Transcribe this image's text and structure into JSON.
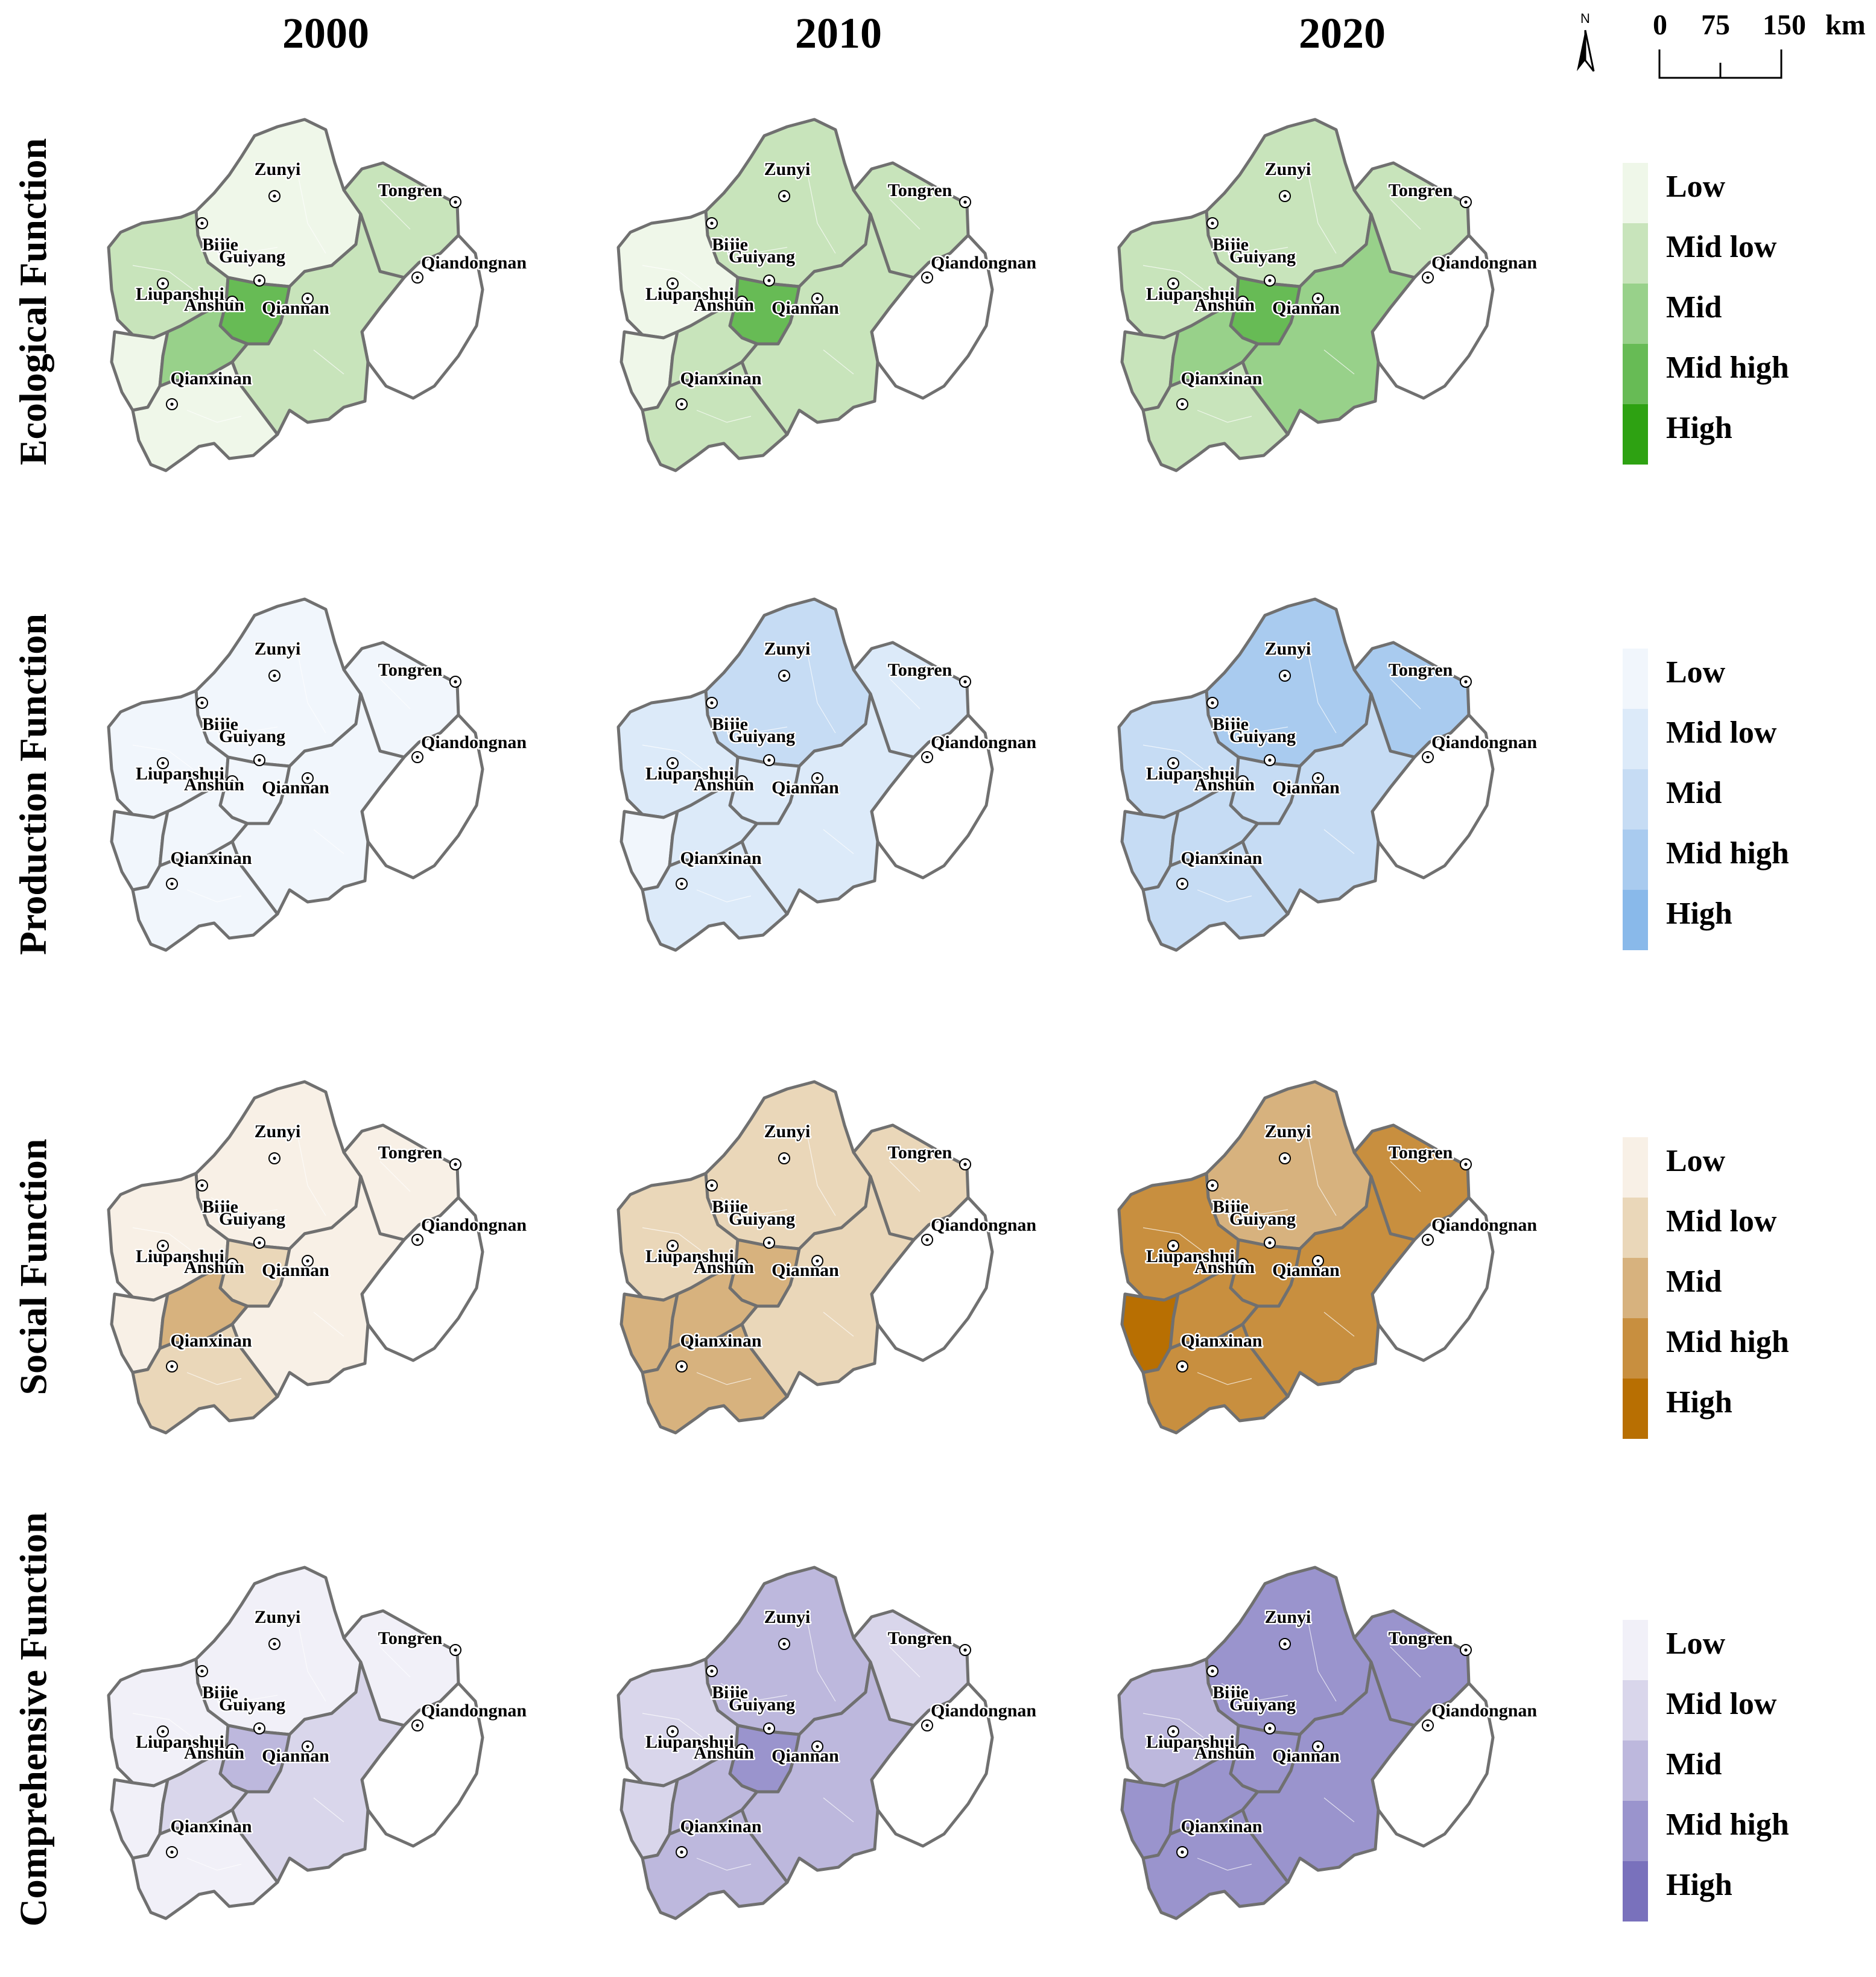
{
  "years": [
    "2000",
    "2010",
    "2020"
  ],
  "rows": [
    {
      "label": "Ecological Function",
      "key": "eco",
      "palette": [
        "#eff7e9",
        "#c8e4bb",
        "#98d18a",
        "#67bb55",
        "#2ea212"
      ],
      "legend": [
        "Low",
        "Mid low",
        "Mid",
        "Mid high",
        "High"
      ]
    },
    {
      "label": "Production Function",
      "key": "prod",
      "palette": [
        "#f1f6fc",
        "#dceaf9",
        "#c6dcf4",
        "#a9cbef",
        "#89b9ea"
      ],
      "legend": [
        "Low",
        "Mid low",
        "Mid",
        "Mid high",
        "High"
      ]
    },
    {
      "label": "Social Function",
      "key": "soc",
      "palette": [
        "#f8f0e6",
        "#ead7b9",
        "#d7b27e",
        "#c88f3f",
        "#b86f02"
      ],
      "legend": [
        "Low",
        "Mid low",
        "Mid",
        "Mid high",
        "High"
      ]
    },
    {
      "label": "Comprehensive Function",
      "key": "comp",
      "palette": [
        "#f1f0f8",
        "#d9d6eb",
        "#bdb8dd",
        "#9a94cd",
        "#7971bc"
      ],
      "legend": [
        "Low",
        "Mid low",
        "Mid",
        "Mid high",
        "High"
      ]
    }
  ],
  "cities": [
    "Zunyi",
    "Tongren",
    "Bijie",
    "Guiyang",
    "Qiandongnan",
    "Liupanshui",
    "Anshun",
    "Qiannan",
    "Qianxinan"
  ],
  "levels": {
    "eco": [
      {
        "Zunyi": 0,
        "Tongren": 1,
        "Bijie": 1,
        "Guiyang": 3,
        "Qiandongnan": null,
        "Liupanshui": 0,
        "Anshun": 2,
        "Qiannan": 1,
        "Qianxinan": 0
      },
      {
        "Zunyi": 1,
        "Tongren": 1,
        "Bijie": 0,
        "Guiyang": 3,
        "Qiandongnan": null,
        "Liupanshui": 0,
        "Anshun": 1,
        "Qiannan": 1,
        "Qianxinan": 1
      },
      {
        "Zunyi": 1,
        "Tongren": 1,
        "Bijie": 1,
        "Guiyang": 3,
        "Qiandongnan": null,
        "Liupanshui": 1,
        "Anshun": 2,
        "Qiannan": 2,
        "Qianxinan": 1
      }
    ],
    "prod": [
      {
        "Zunyi": 0,
        "Tongren": 0,
        "Bijie": 0,
        "Guiyang": 0,
        "Qiandongnan": null,
        "Liupanshui": 0,
        "Anshun": 0,
        "Qiannan": 0,
        "Qianxinan": 0
      },
      {
        "Zunyi": 2,
        "Tongren": 1,
        "Bijie": 1,
        "Guiyang": 1,
        "Qiandongnan": null,
        "Liupanshui": 0,
        "Anshun": 1,
        "Qiannan": 1,
        "Qianxinan": 1
      },
      {
        "Zunyi": 3,
        "Tongren": 3,
        "Bijie": 2,
        "Guiyang": 2,
        "Qiandongnan": null,
        "Liupanshui": 2,
        "Anshun": 2,
        "Qiannan": 2,
        "Qianxinan": 2
      }
    ],
    "soc": [
      {
        "Zunyi": 0,
        "Tongren": 0,
        "Bijie": 0,
        "Guiyang": 1,
        "Qiandongnan": null,
        "Liupanshui": 0,
        "Anshun": 2,
        "Qiannan": 0,
        "Qianxinan": 1
      },
      {
        "Zunyi": 1,
        "Tongren": 1,
        "Bijie": 1,
        "Guiyang": 2,
        "Qiandongnan": null,
        "Liupanshui": 2,
        "Anshun": 2,
        "Qiannan": 1,
        "Qianxinan": 2
      },
      {
        "Zunyi": 2,
        "Tongren": 3,
        "Bijie": 3,
        "Guiyang": 3,
        "Qiandongnan": null,
        "Liupanshui": 4,
        "Anshun": 3,
        "Qiannan": 3,
        "Qianxinan": 3
      }
    ],
    "comp": [
      {
        "Zunyi": 0,
        "Tongren": 0,
        "Bijie": 0,
        "Guiyang": 2,
        "Qiandongnan": null,
        "Liupanshui": 0,
        "Anshun": 1,
        "Qiannan": 1,
        "Qianxinan": 0
      },
      {
        "Zunyi": 2,
        "Tongren": 1,
        "Bijie": 1,
        "Guiyang": 3,
        "Qiandongnan": null,
        "Liupanshui": 1,
        "Anshun": 2,
        "Qiannan": 2,
        "Qianxinan": 2
      },
      {
        "Zunyi": 3,
        "Tongren": 3,
        "Bijie": 2,
        "Guiyang": 3,
        "Qiandongnan": null,
        "Liupanshui": 3,
        "Anshun": 3,
        "Qiannan": 3,
        "Qianxinan": 3
      }
    ]
  },
  "north_label": "N",
  "scale": {
    "ticks": [
      "0",
      "75",
      "150"
    ],
    "unit": "km"
  }
}
